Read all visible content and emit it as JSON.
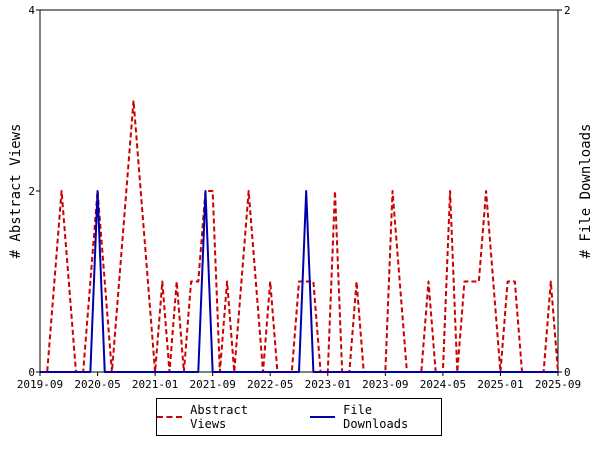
{
  "chart_data": {
    "type": "line",
    "x_tick_labels": [
      "2019-09",
      "2020-05",
      "2021-01",
      "2021-09",
      "2022-05",
      "2023-01",
      "2023-09",
      "2024-05",
      "2025-01",
      "2025-09"
    ],
    "y_left_label": "# Abstract Views",
    "y_right_label": "# File Downloads",
    "y_left_ticks": [
      "0",
      "2",
      "4"
    ],
    "y_right_ticks": [
      "0",
      "2"
    ],
    "y_left_range": [
      0,
      4
    ],
    "y_right_range": [
      0,
      2
    ],
    "x_range_months": [
      "2019-09",
      "2025-09"
    ],
    "grid": false,
    "legend_position": "bottom",
    "series": [
      {
        "name": "Abstract Views",
        "axis": "left",
        "color": "#cc0000",
        "style": "dashed",
        "points": [
          [
            "2019-09",
            0
          ],
          [
            "2019-10",
            0
          ],
          [
            "2019-11",
            1
          ],
          [
            "2019-12",
            2
          ],
          [
            "2020-01",
            1
          ],
          [
            "2020-02",
            0
          ],
          [
            "2020-03",
            0
          ],
          [
            "2020-04",
            1
          ],
          [
            "2020-05",
            2
          ],
          [
            "2020-06",
            1
          ],
          [
            "2020-07",
            0
          ],
          [
            "2020-08",
            1
          ],
          [
            "2020-09",
            2
          ],
          [
            "2020-10",
            3
          ],
          [
            "2020-11",
            2
          ],
          [
            "2020-12",
            1
          ],
          [
            "2021-01",
            0
          ],
          [
            "2021-02",
            1
          ],
          [
            "2021-03",
            0
          ],
          [
            "2021-04",
            1
          ],
          [
            "2021-05",
            0
          ],
          [
            "2021-06",
            1
          ],
          [
            "2021-07",
            1
          ],
          [
            "2021-08",
            2
          ],
          [
            "2021-09",
            2
          ],
          [
            "2021-10",
            0
          ],
          [
            "2021-11",
            1
          ],
          [
            "2021-12",
            0
          ],
          [
            "2022-01",
            1
          ],
          [
            "2022-02",
            2
          ],
          [
            "2022-03",
            1
          ],
          [
            "2022-04",
            0
          ],
          [
            "2022-05",
            1
          ],
          [
            "2022-06",
            0
          ],
          [
            "2022-07",
            0
          ],
          [
            "2022-08",
            0
          ],
          [
            "2022-09",
            1
          ],
          [
            "2022-10",
            1
          ],
          [
            "2022-11",
            1
          ],
          [
            "2022-12",
            0
          ],
          [
            "2023-01",
            0
          ],
          [
            "2023-02",
            2
          ],
          [
            "2023-03",
            0
          ],
          [
            "2023-04",
            0
          ],
          [
            "2023-05",
            1
          ],
          [
            "2023-06",
            0
          ],
          [
            "2023-07",
            0
          ],
          [
            "2023-08",
            0
          ],
          [
            "2023-09",
            0
          ],
          [
            "2023-10",
            2
          ],
          [
            "2023-11",
            1
          ],
          [
            "2023-12",
            0
          ],
          [
            "2024-01",
            0
          ],
          [
            "2024-02",
            0
          ],
          [
            "2024-03",
            1
          ],
          [
            "2024-04",
            0
          ],
          [
            "2024-05",
            0
          ],
          [
            "2024-06",
            2
          ],
          [
            "2024-07",
            0
          ],
          [
            "2024-08",
            1
          ],
          [
            "2024-09",
            1
          ],
          [
            "2024-10",
            1
          ],
          [
            "2024-11",
            2
          ],
          [
            "2024-12",
            1
          ],
          [
            "2025-01",
            0
          ],
          [
            "2025-02",
            1
          ],
          [
            "2025-03",
            1
          ],
          [
            "2025-04",
            0
          ],
          [
            "2025-05",
            0
          ],
          [
            "2025-06",
            0
          ],
          [
            "2025-07",
            0
          ],
          [
            "2025-08",
            1
          ],
          [
            "2025-09",
            0
          ]
        ]
      },
      {
        "name": "File Downloads",
        "axis": "right",
        "color": "#0000aa",
        "style": "solid",
        "points": [
          [
            "2019-09",
            0
          ],
          [
            "2020-04",
            0
          ],
          [
            "2020-05",
            1
          ],
          [
            "2020-06",
            0
          ],
          [
            "2021-07",
            0
          ],
          [
            "2021-08",
            1
          ],
          [
            "2021-09",
            0
          ],
          [
            "2022-09",
            0
          ],
          [
            "2022-10",
            1
          ],
          [
            "2022-11",
            0
          ],
          [
            "2025-09",
            0
          ]
        ]
      }
    ]
  }
}
